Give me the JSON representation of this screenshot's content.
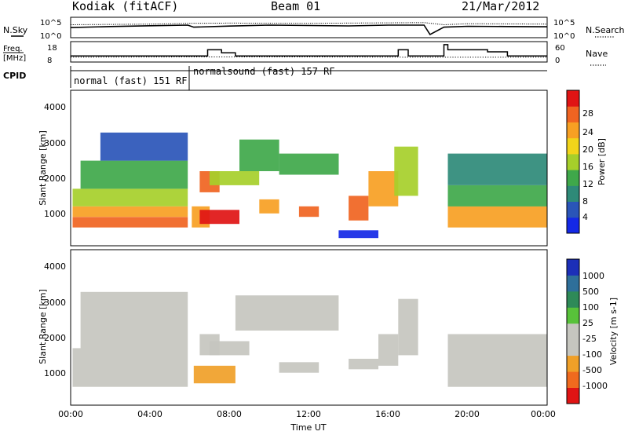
{
  "header": {
    "station": "Kodiak (fitACF)",
    "beam": "Beam 01",
    "date": "21/Mar/2012"
  },
  "noise_panel": {
    "left_label": "N.Sky",
    "right_label": "N.Search",
    "left_ticks": [
      "10^5",
      "10^0"
    ],
    "right_ticks": [
      "10^5",
      "10^0"
    ]
  },
  "freq_panel": {
    "left_label_line1": "Freq.",
    "left_label_line2": "[MHz]",
    "right_label": "Nave",
    "left_ticks": [
      "18",
      "8"
    ],
    "right_ticks": [
      "60",
      "0"
    ]
  },
  "cpid_panel": {
    "label": "CPID",
    "modes": [
      {
        "name": "normal (fast) 151 RF",
        "start_hour": 0,
        "end_hour": 6
      },
      {
        "name": "normalsound (fast) 157 RF",
        "start_hour": 6,
        "end_hour": 24
      }
    ]
  },
  "power_panel": {
    "ylabel": "Slant Range [km]",
    "yticks": [
      "4000",
      "3000",
      "2000",
      "1000"
    ],
    "colorbar_label": "Power [dB]",
    "colorbar_ticks": [
      "28",
      "24",
      "20",
      "16",
      "12",
      "8",
      "4"
    ],
    "colors": [
      "#1428e6",
      "#2a55b8",
      "#2e8a78",
      "#3fa84a",
      "#a6cf2a",
      "#f2d41a",
      "#f7a023",
      "#f06421",
      "#e01414"
    ]
  },
  "velocity_panel": {
    "ylabel": "Slant Range [km]",
    "yticks": [
      "4000",
      "3000",
      "2000",
      "1000"
    ],
    "colorbar_label": "Velocity [m s-1]",
    "colorbar_ticks": [
      "1000",
      "500",
      "100",
      "25",
      "-25",
      "-100",
      "-500",
      "-1000"
    ],
    "colors": [
      "#1c2fb8",
      "#2e6f9a",
      "#2e8a58",
      "#58c23a",
      "#c6c6bf",
      "#c6c6bf",
      "#f0a028",
      "#f06a1e",
      "#e01414"
    ]
  },
  "x_axis": {
    "label": "Time UT",
    "ticks": [
      "00:00",
      "04:00",
      "08:00",
      "12:00",
      "16:00",
      "20:00",
      "00:00"
    ]
  },
  "chart_data": [
    {
      "type": "line",
      "title": "N.Sky / N.Search",
      "x_unit": "hour UT",
      "y_scale": "log",
      "ylim": [
        1,
        100000
      ],
      "series": [
        {
          "name": "N.Sky",
          "x": [
            0,
            2,
            4,
            5.9,
            6.2,
            8,
            10,
            12,
            14,
            16,
            17.8,
            18.1,
            18.8,
            20,
            22,
            24
          ],
          "y": [
            300,
            600,
            1000,
            1500,
            400,
            800,
            1500,
            1200,
            900,
            1500,
            1500,
            3,
            400,
            700,
            600,
            500
          ]
        },
        {
          "name": "N.Search",
          "x": [
            0,
            4,
            6,
            8,
            12,
            16,
            17.8,
            18.8,
            20,
            24
          ],
          "y": [
            2000,
            3000,
            5000,
            6000,
            5000,
            7000,
            8000,
            2000,
            4000,
            3000
          ]
        }
      ]
    },
    {
      "type": "line",
      "title": "Freq. / Nave",
      "x_unit": "hour UT",
      "series": [
        {
          "name": "Freq. [MHz]",
          "ylim": [
            8,
            18
          ],
          "x": [
            0,
            6.9,
            6.9,
            7.6,
            7.6,
            8.3,
            8.3,
            13.5,
            13.5,
            16.5,
            16.5,
            17.0,
            17.0,
            18.0,
            18.0,
            18.8,
            18.8,
            19.0,
            19.0,
            21.0,
            21.0,
            22.0,
            22.0,
            24.0
          ],
          "y": [
            11,
            11,
            14,
            14,
            12.5,
            12.5,
            11,
            11,
            11,
            11,
            14,
            14,
            11,
            11,
            11,
            11,
            16.5,
            16.5,
            14,
            14,
            13,
            13,
            11,
            11
          ]
        },
        {
          "name": "Nave",
          "ylim": [
            0,
            60
          ],
          "x": [
            0,
            6,
            12,
            18,
            24
          ],
          "y": [
            14,
            15,
            15,
            14,
            14
          ]
        }
      ]
    },
    {
      "type": "heatmap",
      "title": "Power [dB]",
      "xlabel": "Time UT",
      "ylabel": "Slant Range [km]",
      "xlim": [
        0,
        24
      ],
      "ylim": [
        180,
        4600
      ],
      "zlim": [
        0,
        30
      ],
      "regions": [
        {
          "t0": 0.1,
          "t1": 5.9,
          "r0": 700,
          "r1": 1000,
          "v": 26
        },
        {
          "t0": 0.1,
          "t1": 5.9,
          "r0": 1000,
          "r1": 1300,
          "v": 20
        },
        {
          "t0": 0.1,
          "t1": 5.9,
          "r0": 1300,
          "r1": 1800,
          "v": 14
        },
        {
          "t0": 0.5,
          "t1": 5.9,
          "r0": 1800,
          "r1": 2600,
          "v": 10
        },
        {
          "t0": 1.5,
          "t1": 5.9,
          "r0": 2600,
          "r1": 3400,
          "v": 6
        },
        {
          "t0": 6.1,
          "t1": 7.0,
          "r0": 700,
          "r1": 1300,
          "v": 22
        },
        {
          "t0": 6.5,
          "t1": 8.5,
          "r0": 800,
          "r1": 1200,
          "v": 27
        },
        {
          "t0": 6.5,
          "t1": 7.5,
          "r0": 1700,
          "r1": 2300,
          "v": 24
        },
        {
          "t0": 7.0,
          "t1": 9.5,
          "r0": 1900,
          "r1": 2300,
          "v": 14
        },
        {
          "t0": 8.5,
          "t1": 10.5,
          "r0": 2300,
          "r1": 3200,
          "v": 12
        },
        {
          "t0": 10.5,
          "t1": 13.5,
          "r0": 2200,
          "r1": 2800,
          "v": 10
        },
        {
          "t0": 9.5,
          "t1": 10.5,
          "r0": 1100,
          "r1": 1500,
          "v": 22
        },
        {
          "t0": 11.5,
          "t1": 12.5,
          "r0": 1000,
          "r1": 1300,
          "v": 26
        },
        {
          "t0": 14.0,
          "t1": 15.0,
          "r0": 900,
          "r1": 1600,
          "v": 25
        },
        {
          "t0": 15.0,
          "t1": 16.5,
          "r0": 1300,
          "r1": 2300,
          "v": 22
        },
        {
          "t0": 16.3,
          "t1": 17.5,
          "r0": 1600,
          "r1": 3000,
          "v": 16
        },
        {
          "t0": 13.5,
          "t1": 15.5,
          "r0": 400,
          "r1": 620,
          "v": 3
        },
        {
          "t0": 19.0,
          "t1": 24.0,
          "r0": 700,
          "r1": 1300,
          "v": 20
        },
        {
          "t0": 19.0,
          "t1": 24.0,
          "r0": 1300,
          "r1": 1900,
          "v": 11
        },
        {
          "t0": 19.0,
          "t1": 24.0,
          "r0": 1900,
          "r1": 2800,
          "v": 7
        }
      ]
    },
    {
      "type": "heatmap",
      "title": "Velocity [m s-1]",
      "xlabel": "Time UT",
      "ylabel": "Slant Range [km]",
      "xlim": [
        0,
        24
      ],
      "ylim": [
        180,
        4600
      ],
      "zlim": [
        -1000,
        1000
      ],
      "regions": [
        {
          "t0": 0.1,
          "t1": 5.9,
          "r0": 700,
          "r1": 1800,
          "v": 0
        },
        {
          "t0": 0.5,
          "t1": 5.9,
          "r0": 1800,
          "r1": 3400,
          "v": 0
        },
        {
          "t0": 6.2,
          "t1": 8.3,
          "r0": 800,
          "r1": 1300,
          "v": -400
        },
        {
          "t0": 6.5,
          "t1": 7.5,
          "r0": 1600,
          "r1": 2200,
          "v": -80
        },
        {
          "t0": 7.0,
          "t1": 9.0,
          "r0": 1600,
          "r1": 2000,
          "v": 40
        },
        {
          "t0": 8.3,
          "t1": 13.5,
          "r0": 2300,
          "r1": 3300,
          "v": 0
        },
        {
          "t0": 10.5,
          "t1": 12.5,
          "r0": 1100,
          "r1": 1400,
          "v": 50
        },
        {
          "t0": 14.0,
          "t1": 15.5,
          "r0": 1200,
          "r1": 1500,
          "v": 50
        },
        {
          "t0": 15.5,
          "t1": 16.5,
          "r0": 1300,
          "r1": 2200,
          "v": -300
        },
        {
          "t0": 16.5,
          "t1": 17.5,
          "r0": 1600,
          "r1": 3200,
          "v": 50
        },
        {
          "t0": 19.0,
          "t1": 24.0,
          "r0": 700,
          "r1": 2200,
          "v": 0
        }
      ]
    }
  ]
}
